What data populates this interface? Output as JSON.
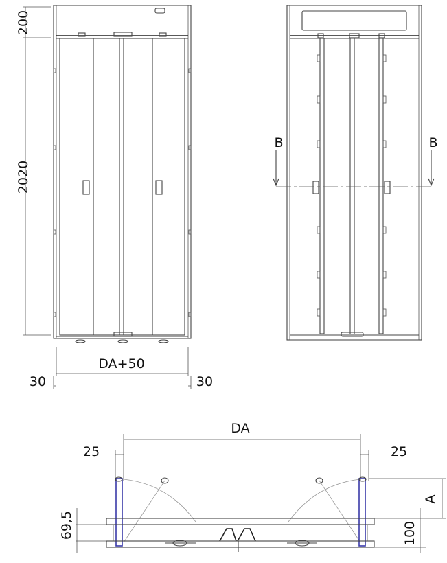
{
  "front_view": {
    "height_top": "200",
    "height_main": "2020",
    "width": "DA+50",
    "side_left": "30",
    "side_right": "30"
  },
  "back_view": {
    "section_left": "B",
    "section_right": "B"
  },
  "plan_view": {
    "width": "DA",
    "side_left": "25",
    "side_right": "25",
    "depth_a": "A",
    "depth_100": "100",
    "offset_69_5": "69,5"
  }
}
